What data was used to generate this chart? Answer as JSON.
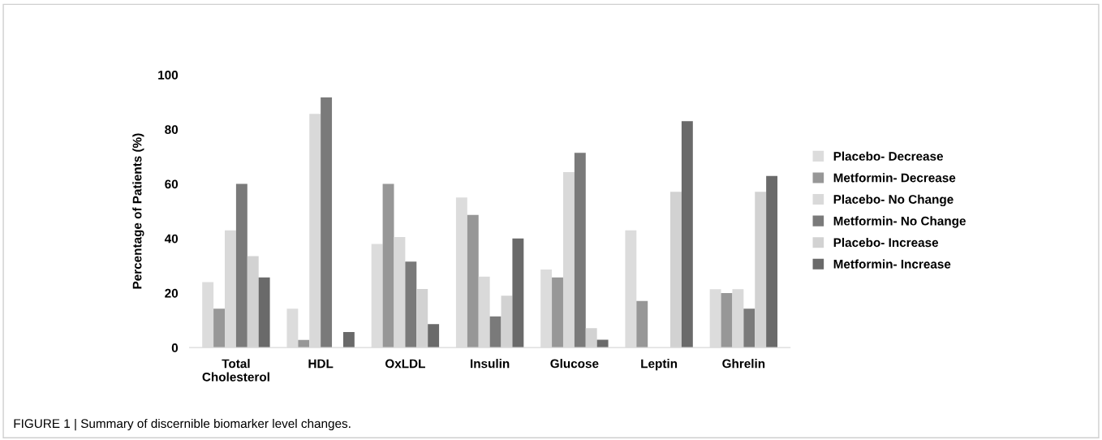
{
  "chart_data": {
    "type": "bar",
    "ylabel": "Percentage of Patients (%)",
    "categories": [
      "Total\nCholesterol",
      "HDL",
      "OxLDL",
      "Insulin",
      "Glucose",
      "Leptin",
      "Ghrelin"
    ],
    "series": [
      {
        "name": "Placebo- Decrease",
        "color": "#dcdcdc",
        "values": [
          24,
          14.3,
          38,
          55,
          28.6,
          43,
          21.4
        ]
      },
      {
        "name": "Metformin- Decrease",
        "color": "#979797",
        "values": [
          14.3,
          2.8,
          60,
          48.6,
          25.7,
          17.1,
          20
        ]
      },
      {
        "name": "Placebo- No Change",
        "color": "#d9d9d9",
        "values": [
          43,
          85.7,
          40.5,
          26,
          64.3,
          0,
          21.4
        ]
      },
      {
        "name": "Metformin- No Change",
        "color": "#7a7a7a",
        "values": [
          60,
          91.7,
          31.5,
          11.4,
          71.4,
          0,
          14.3
        ]
      },
      {
        "name": "Placebo- Increase",
        "color": "#d2d2d2",
        "values": [
          33.5,
          0,
          21.5,
          19,
          7.1,
          57.1,
          57.1
        ]
      },
      {
        "name": "Metformin- Increase",
        "color": "#6a6a6a",
        "values": [
          25.7,
          5.7,
          8.6,
          40,
          2.9,
          83,
          62.9
        ]
      }
    ],
    "ylim": [
      0,
      100
    ],
    "yticks": [
      0,
      20,
      40,
      60,
      80,
      100
    ],
    "grid": false,
    "legend": "right",
    "annotations": [
      "FIGURE 1 | Summary of discernible biomarker level changes."
    ]
  }
}
